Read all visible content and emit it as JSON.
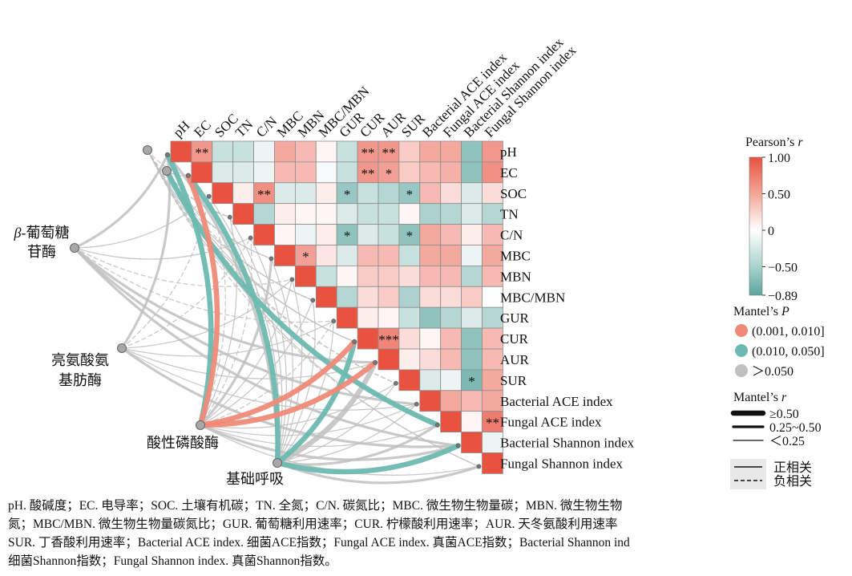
{
  "chart_data": {
    "type": "heatmap",
    "title": "",
    "variables": [
      "pH",
      "EC",
      "SOC",
      "TN",
      "C/N",
      "MBC",
      "MBN",
      "MBC/MBN",
      "GUR",
      "CUR",
      "AUR",
      "SUR",
      "Bacterial ACE index",
      "Fungal ACE index",
      "Bacterial Shannon index",
      "Fungal Shannon index"
    ],
    "correlation_matrix_upper": [
      [
        1.0,
        0.6,
        -0.3,
        -0.3,
        -0.1,
        0.5,
        0.4,
        0.05,
        -0.3,
        0.6,
        0.6,
        0.3,
        0.5,
        0.5,
        -0.6,
        0.6
      ],
      [
        null,
        1.0,
        -0.2,
        -0.2,
        -0.1,
        0.4,
        0.4,
        -0.05,
        -0.3,
        0.6,
        0.55,
        0.3,
        0.4,
        0.45,
        -0.6,
        0.65
      ],
      [
        null,
        null,
        1.0,
        0.1,
        0.65,
        -0.2,
        -0.2,
        0.1,
        -0.55,
        -0.3,
        -0.4,
        -0.55,
        0.4,
        0.2,
        -0.2,
        0.2
      ],
      [
        null,
        null,
        null,
        1.0,
        -0.4,
        0.1,
        0.05,
        0.05,
        -0.2,
        -0.3,
        -0.3,
        0.05,
        -0.45,
        -0.4,
        -0.2,
        -0.4
      ],
      [
        null,
        null,
        null,
        null,
        1.0,
        0.05,
        -0.1,
        0.1,
        -0.6,
        -0.2,
        -0.3,
        -0.6,
        0.5,
        0.4,
        0.1,
        0.4
      ],
      [
        null,
        null,
        null,
        null,
        null,
        1.0,
        0.55,
        0.15,
        -0.2,
        0.4,
        0.4,
        -0.3,
        0.5,
        0.5,
        -0.1,
        0.5
      ],
      [
        null,
        null,
        null,
        null,
        null,
        null,
        1.0,
        -0.3,
        0.05,
        0.3,
        0.3,
        0.2,
        0.4,
        0.4,
        -0.4,
        0.4
      ],
      [
        null,
        null,
        null,
        null,
        null,
        null,
        null,
        1.0,
        -0.4,
        0.2,
        0.3,
        -0.45,
        0.2,
        0.2,
        0.3,
        0.0
      ],
      [
        null,
        null,
        null,
        null,
        null,
        null,
        null,
        null,
        1.0,
        0.1,
        0.05,
        -0.3,
        -0.6,
        -0.4,
        -0.2,
        -0.4
      ],
      [
        null,
        null,
        null,
        null,
        null,
        null,
        null,
        null,
        null,
        1.0,
        0.7,
        0.2,
        0.05,
        0.4,
        -0.6,
        0.4
      ],
      [
        null,
        null,
        null,
        null,
        null,
        null,
        null,
        null,
        null,
        null,
        1.0,
        0.1,
        0.2,
        0.4,
        -0.6,
        0.4
      ],
      [
        null,
        null,
        null,
        null,
        null,
        null,
        null,
        null,
        null,
        null,
        null,
        1.0,
        -0.2,
        -0.1,
        -0.7,
        0.5
      ],
      [
        null,
        null,
        null,
        null,
        null,
        null,
        null,
        null,
        null,
        null,
        null,
        null,
        1.0,
        0.5,
        0.4,
        0.5
      ],
      [
        null,
        null,
        null,
        null,
        null,
        null,
        null,
        null,
        null,
        null,
        null,
        null,
        null,
        1.0,
        0.05,
        0.75
      ],
      [
        null,
        null,
        null,
        null,
        null,
        null,
        null,
        null,
        null,
        null,
        null,
        null,
        null,
        null,
        1.0,
        -0.1
      ],
      [
        null,
        null,
        null,
        null,
        null,
        null,
        null,
        null,
        null,
        null,
        null,
        null,
        null,
        null,
        null,
        1.0
      ]
    ],
    "significance_stars": [
      {
        "row": "pH",
        "col": "EC",
        "label": "**"
      },
      {
        "row": "pH",
        "col": "CUR",
        "label": "**"
      },
      {
        "row": "pH",
        "col": "AUR",
        "label": "**"
      },
      {
        "row": "EC",
        "col": "CUR",
        "label": "**"
      },
      {
        "row": "EC",
        "col": "AUR",
        "label": "*"
      },
      {
        "row": "SOC",
        "col": "C/N",
        "label": "**"
      },
      {
        "row": "SOC",
        "col": "GUR",
        "label": "*"
      },
      {
        "row": "SOC",
        "col": "SUR",
        "label": "*"
      },
      {
        "row": "C/N",
        "col": "GUR",
        "label": "*"
      },
      {
        "row": "C/N",
        "col": "SUR",
        "label": "*"
      },
      {
        "row": "MBC",
        "col": "MBN",
        "label": "*"
      },
      {
        "row": "CUR",
        "col": "AUR",
        "label": "***"
      },
      {
        "row": "SUR",
        "col": "Bacterial Shannon index",
        "label": "*"
      },
      {
        "row": "Fungal ACE index",
        "col": "Fungal Shannon index",
        "label": "**"
      }
    ],
    "color_scale": {
      "title_prefix": "Pearson’s",
      "title_italic": "r",
      "min": -0.89,
      "max": 1.0,
      "ticks": [
        "1.00",
        "0.50",
        "0",
        "−0.50",
        "−0.89"
      ],
      "colors": {
        "negative": "#5aa59e",
        "zero": "#ffffff",
        "positive": "#e8523f"
      }
    },
    "enzymes": [
      {
        "id": "glucosidase",
        "label_lines": [
          {
            "italic": "β",
            "rest": "-葡萄糖"
          },
          {
            "italic": "",
            "rest": "苷酶"
          }
        ]
      },
      {
        "id": "leucine",
        "label_lines": [
          {
            "italic": "",
            "rest": "亮氨酸氨"
          },
          {
            "italic": "",
            "rest": "基肪酶"
          }
        ]
      },
      {
        "id": "phosphatase",
        "label_lines": [
          {
            "italic": "",
            "rest": "酸性磷酸酶"
          }
        ]
      },
      {
        "id": "respiration",
        "label_lines": [
          {
            "italic": "",
            "rest": "基础呼吸"
          }
        ]
      }
    ],
    "mantel_links": [
      {
        "from": "glucosidase",
        "to": "pH",
        "p_class": "gray",
        "r_class": "mid",
        "sign": "pos"
      },
      {
        "from": "glucosidase",
        "to": "EC",
        "p_class": "gray",
        "r_class": "weak",
        "sign": "neg"
      },
      {
        "from": "glucosidase",
        "to": "SOC",
        "p_class": "gray",
        "r_class": "weak",
        "sign": "pos"
      },
      {
        "from": "glucosidase",
        "to": "TN",
        "p_class": "gray",
        "r_class": "weak",
        "sign": "neg"
      },
      {
        "from": "glucosidase",
        "to": "C/N",
        "p_class": "gray",
        "r_class": "weak",
        "sign": "pos"
      },
      {
        "from": "glucosidase",
        "to": "MBC",
        "p_class": "gray",
        "r_class": "weak",
        "sign": "neg"
      },
      {
        "from": "glucosidase",
        "to": "MBN",
        "p_class": "gray",
        "r_class": "weak",
        "sign": "neg"
      },
      {
        "from": "glucosidase",
        "to": "MBC/MBN",
        "p_class": "gray",
        "r_class": "weak",
        "sign": "pos"
      },
      {
        "from": "glucosidase",
        "to": "GUR",
        "p_class": "gray",
        "r_class": "weak",
        "sign": "neg"
      },
      {
        "from": "glucosidase",
        "to": "CUR",
        "p_class": "gray",
        "r_class": "weak",
        "sign": "pos"
      },
      {
        "from": "glucosidase",
        "to": "AUR",
        "p_class": "gray",
        "r_class": "mid",
        "sign": "pos"
      },
      {
        "from": "glucosidase",
        "to": "SUR",
        "p_class": "gray",
        "r_class": "weak",
        "sign": "neg"
      },
      {
        "from": "glucosidase",
        "to": "Bacterial ACE index",
        "p_class": "gray",
        "r_class": "mid",
        "sign": "pos"
      },
      {
        "from": "glucosidase",
        "to": "Fungal ACE index",
        "p_class": "gray",
        "r_class": "weak",
        "sign": "pos"
      },
      {
        "from": "glucosidase",
        "to": "Bacterial Shannon index",
        "p_class": "gray",
        "r_class": "mid",
        "sign": "pos"
      },
      {
        "from": "glucosidase",
        "to": "Fungal Shannon index",
        "p_class": "gray",
        "r_class": "weak",
        "sign": "neg"
      },
      {
        "from": "leucine",
        "to": "pH",
        "p_class": "gray",
        "r_class": "mid",
        "sign": "pos"
      },
      {
        "from": "leucine",
        "to": "EC",
        "p_class": "gray",
        "r_class": "weak",
        "sign": "pos"
      },
      {
        "from": "leucine",
        "to": "SOC",
        "p_class": "gray",
        "r_class": "weak",
        "sign": "neg"
      },
      {
        "from": "leucine",
        "to": "TN",
        "p_class": "gray",
        "r_class": "weak",
        "sign": "neg"
      },
      {
        "from": "leucine",
        "to": "C/N",
        "p_class": "gray",
        "r_class": "weak",
        "sign": "neg"
      },
      {
        "from": "leucine",
        "to": "MBC",
        "p_class": "gray",
        "r_class": "weak",
        "sign": "pos"
      },
      {
        "from": "leucine",
        "to": "MBN",
        "p_class": "gray",
        "r_class": "weak",
        "sign": "pos"
      },
      {
        "from": "leucine",
        "to": "MBC/MBN",
        "p_class": "gray",
        "r_class": "weak",
        "sign": "neg"
      },
      {
        "from": "leucine",
        "to": "GUR",
        "p_class": "gray",
        "r_class": "weak",
        "sign": "pos"
      },
      {
        "from": "leucine",
        "to": "CUR",
        "p_class": "gray",
        "r_class": "weak",
        "sign": "pos"
      },
      {
        "from": "leucine",
        "to": "AUR",
        "p_class": "gray",
        "r_class": "weak",
        "sign": "pos"
      },
      {
        "from": "leucine",
        "to": "SUR",
        "p_class": "gray",
        "r_class": "weak",
        "sign": "neg"
      },
      {
        "from": "leucine",
        "to": "Bacterial ACE index",
        "p_class": "gray",
        "r_class": "weak",
        "sign": "pos"
      },
      {
        "from": "leucine",
        "to": "Fungal ACE index",
        "p_class": "teal",
        "r_class": "strong",
        "sign": "pos"
      },
      {
        "from": "leucine",
        "to": "Bacterial Shannon index",
        "p_class": "gray",
        "r_class": "mid",
        "sign": "pos"
      },
      {
        "from": "leucine",
        "to": "Fungal Shannon index",
        "p_class": "gray",
        "r_class": "weak",
        "sign": "pos"
      },
      {
        "from": "phosphatase",
        "to": "pH",
        "p_class": "teal",
        "r_class": "strong",
        "sign": "pos"
      },
      {
        "from": "phosphatase",
        "to": "EC",
        "p_class": "salmon",
        "r_class": "strong",
        "sign": "pos"
      },
      {
        "from": "phosphatase",
        "to": "SOC",
        "p_class": "gray",
        "r_class": "weak",
        "sign": "neg"
      },
      {
        "from": "phosphatase",
        "to": "TN",
        "p_class": "gray",
        "r_class": "weak",
        "sign": "pos"
      },
      {
        "from": "phosphatase",
        "to": "C/N",
        "p_class": "gray",
        "r_class": "weak",
        "sign": "neg"
      },
      {
        "from": "phosphatase",
        "to": "MBC",
        "p_class": "gray",
        "r_class": "mid",
        "sign": "pos"
      },
      {
        "from": "phosphatase",
        "to": "MBN",
        "p_class": "gray",
        "r_class": "weak",
        "sign": "pos"
      },
      {
        "from": "phosphatase",
        "to": "MBC/MBN",
        "p_class": "gray",
        "r_class": "weak",
        "sign": "pos"
      },
      {
        "from": "phosphatase",
        "to": "GUR",
        "p_class": "gray",
        "r_class": "weak",
        "sign": "neg"
      },
      {
        "from": "phosphatase",
        "to": "CUR",
        "p_class": "salmon",
        "r_class": "strong",
        "sign": "pos"
      },
      {
        "from": "phosphatase",
        "to": "AUR",
        "p_class": "salmon",
        "r_class": "strong",
        "sign": "pos"
      },
      {
        "from": "phosphatase",
        "to": "SUR",
        "p_class": "gray",
        "r_class": "weak",
        "sign": "pos"
      },
      {
        "from": "phosphatase",
        "to": "Bacterial ACE index",
        "p_class": "gray",
        "r_class": "weak",
        "sign": "pos"
      },
      {
        "from": "phosphatase",
        "to": "Fungal ACE index",
        "p_class": "gray",
        "r_class": "weak",
        "sign": "pos"
      },
      {
        "from": "phosphatase",
        "to": "Bacterial Shannon index",
        "p_class": "gray",
        "r_class": "mid",
        "sign": "pos"
      },
      {
        "from": "phosphatase",
        "to": "Fungal Shannon index",
        "p_class": "gray",
        "r_class": "weak",
        "sign": "pos"
      },
      {
        "from": "respiration",
        "to": "pH",
        "p_class": "gray",
        "r_class": "mid",
        "sign": "pos"
      },
      {
        "from": "respiration",
        "to": "EC",
        "p_class": "teal",
        "r_class": "strong",
        "sign": "pos"
      },
      {
        "from": "respiration",
        "to": "SOC",
        "p_class": "gray",
        "r_class": "weak",
        "sign": "pos"
      },
      {
        "from": "respiration",
        "to": "TN",
        "p_class": "gray",
        "r_class": "weak",
        "sign": "pos"
      },
      {
        "from": "respiration",
        "to": "C/N",
        "p_class": "gray",
        "r_class": "weak",
        "sign": "pos"
      },
      {
        "from": "respiration",
        "to": "MBC",
        "p_class": "gray",
        "r_class": "weak",
        "sign": "pos"
      },
      {
        "from": "respiration",
        "to": "MBN",
        "p_class": "gray",
        "r_class": "weak",
        "sign": "pos"
      },
      {
        "from": "respiration",
        "to": "MBC/MBN",
        "p_class": "gray",
        "r_class": "weak",
        "sign": "pos"
      },
      {
        "from": "respiration",
        "to": "GUR",
        "p_class": "gray",
        "r_class": "weak",
        "sign": "pos"
      },
      {
        "from": "respiration",
        "to": "CUR",
        "p_class": "teal",
        "r_class": "strong",
        "sign": "pos"
      },
      {
        "from": "respiration",
        "to": "AUR",
        "p_class": "gray",
        "r_class": "strong",
        "sign": "pos"
      },
      {
        "from": "respiration",
        "to": "SUR",
        "p_class": "gray",
        "r_class": "weak",
        "sign": "pos"
      },
      {
        "from": "respiration",
        "to": "Bacterial ACE index",
        "p_class": "gray",
        "r_class": "weak",
        "sign": "pos"
      },
      {
        "from": "respiration",
        "to": "Fungal ACE index",
        "p_class": "gray",
        "r_class": "mid",
        "sign": "pos"
      },
      {
        "from": "respiration",
        "to": "Bacterial Shannon index",
        "p_class": "teal",
        "r_class": "strong",
        "sign": "pos"
      },
      {
        "from": "respiration",
        "to": "Fungal Shannon index",
        "p_class": "gray",
        "r_class": "mid",
        "sign": "pos"
      }
    ],
    "legend": {
      "mantel_p_title_prefix": "Mantel’s",
      "mantel_p_title_italic": "P",
      "p_classes": [
        {
          "id": "salmon",
          "label": "(0.001, 0.010]",
          "color": "#ef8a78"
        },
        {
          "id": "teal",
          "label": "(0.010, 0.050]",
          "color": "#6db9b1"
        },
        {
          "id": "gray",
          "label": "＞0.050",
          "color": "#c0c0c0"
        }
      ],
      "mantel_r_title_prefix": "Mantel’s",
      "mantel_r_title_italic": "r",
      "r_classes": [
        {
          "id": "strong",
          "label": "≥0.50"
        },
        {
          "id": "mid",
          "label": "0.25~0.50"
        },
        {
          "id": "weak",
          "label": "＜0.25"
        }
      ],
      "sign_items": [
        {
          "id": "pos",
          "label": "正相关"
        },
        {
          "id": "neg",
          "label": "负相关"
        }
      ]
    }
  },
  "caption_lines": [
    "pH. 酸碱度；EC. 电导率；SOC. 土壤有机碳；TN. 全氮；C/N. 碳氮比；MBC. 微生物生物量碳；MBN. 微生物生物",
    "氮；MBC/MBN. 微生物生物量碳氮比；GUR. 葡萄糖利用速率；CUR. 柠檬酸利用速率；AUR. 天冬氨酸利用速率",
    "SUR. 丁香酸利用速率；Bacterial ACE index. 细菌ACE指数；Fungal ACE index. 真菌ACE指数；Bacterial Shannon ind",
    "细菌Shannon指数；Fungal Shannon index. 真菌Shannon指数。"
  ]
}
